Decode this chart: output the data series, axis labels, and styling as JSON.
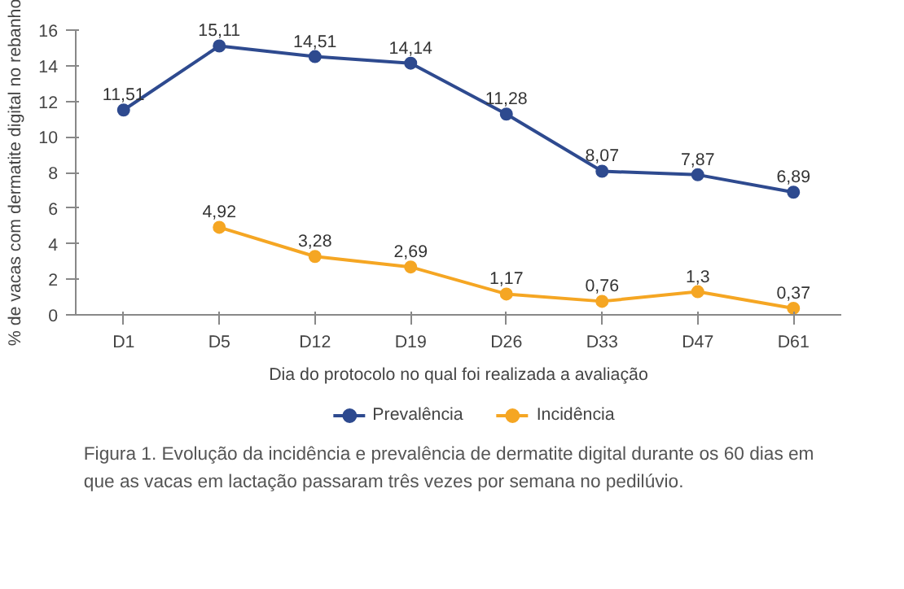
{
  "chart_data": {
    "type": "line",
    "xlabel": "Dia do protocolo no qual foi realizada a avaliação",
    "ylabel": "% de vacas com dermatite digital no rebanho",
    "categories": [
      "D1",
      "D5",
      "D12",
      "D19",
      "D26",
      "D33",
      "D47",
      "D61"
    ],
    "series": [
      {
        "name": "Prevalência",
        "color": "#2e4a8f",
        "values": [
          11.51,
          15.11,
          14.51,
          14.14,
          11.28,
          8.07,
          7.87,
          6.89
        ],
        "value_labels": [
          "11,51",
          "15,11",
          "14,51",
          "14,14",
          "11,28",
          "8,07",
          "7,87",
          "6,89"
        ]
      },
      {
        "name": "Incidência",
        "color": "#f5a623",
        "values": [
          null,
          4.92,
          3.28,
          2.69,
          1.17,
          0.76,
          1.3,
          0.37
        ],
        "value_labels": [
          null,
          "4,92",
          "3,28",
          "2,69",
          "1,17",
          "0,76",
          "1,3",
          "0,37"
        ]
      }
    ],
    "ylim": [
      0,
      16
    ],
    "yticks": [
      0,
      2,
      4,
      6,
      8,
      10,
      12,
      14,
      16
    ],
    "grid": false,
    "legend": "bottom",
    "marker": "circle",
    "line_style": "solid",
    "annotations": [
      "Figura 1. Evolução da incidência e prevalência de dermatite digital durante os 60 dias em que as vacas em lactação passaram três vezes por semana no pedilúvio."
    ]
  }
}
